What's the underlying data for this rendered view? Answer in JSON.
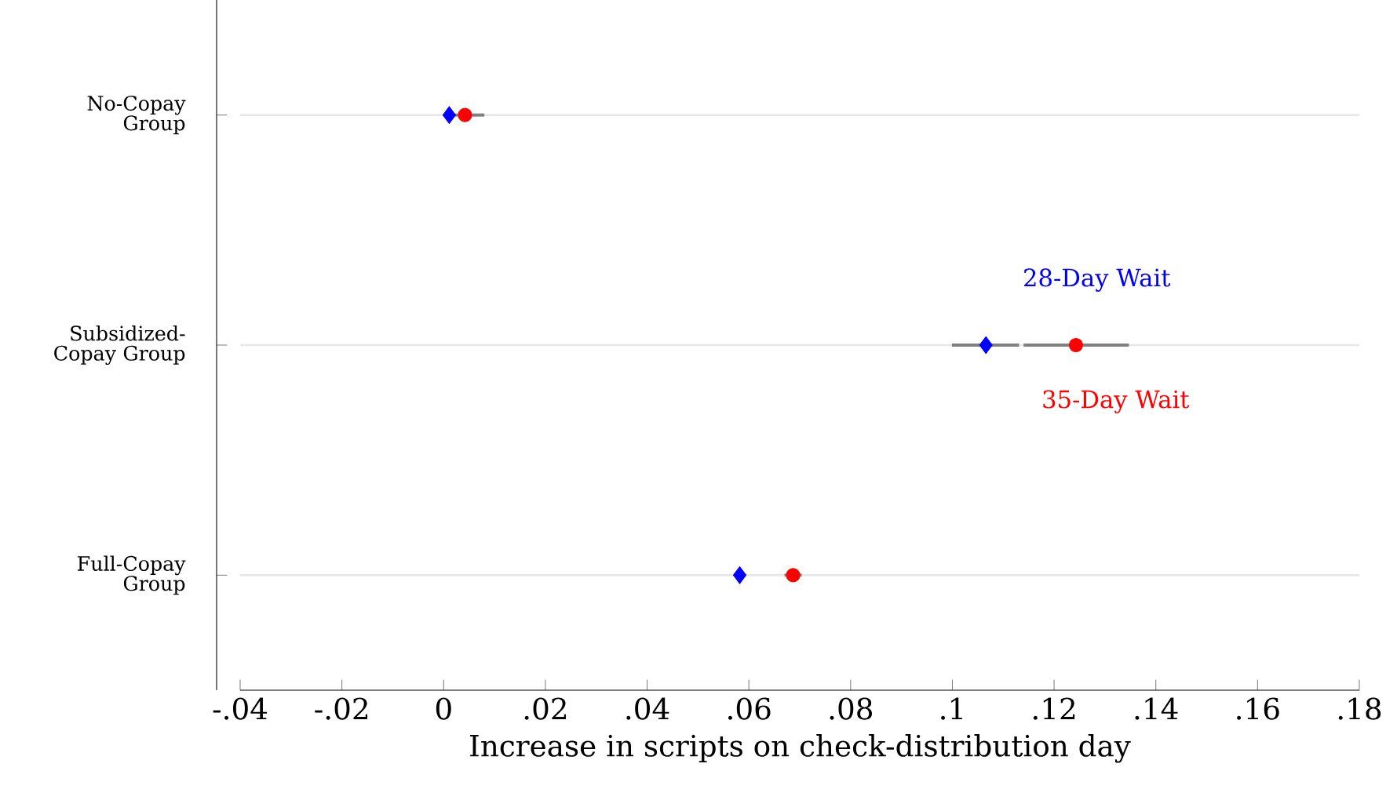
{
  "chart_data": {
    "type": "scatter",
    "orientation": "horizontal",
    "xlabel": "Increase in scripts on check-distribution day",
    "categories": [
      "No-Copay Group",
      "Subsidized-Copay Group",
      "Full-Copay Group"
    ],
    "xlim": [
      -0.04,
      0.18
    ],
    "xticks": [
      {
        "value": -0.04,
        "label": "-.04"
      },
      {
        "value": -0.02,
        "label": "-.02"
      },
      0,
      {
        "value": 0.02,
        "label": ".02"
      },
      {
        "value": 0.04,
        "label": ".04"
      },
      {
        "value": 0.06,
        "label": ".06"
      },
      {
        "value": 0.08,
        "label": ".08"
      },
      {
        "value": 0.1,
        "label": ".1"
      },
      {
        "value": 0.12,
        "label": ".12"
      },
      {
        "value": 0.14,
        "label": ".14"
      },
      {
        "value": 0.16,
        "label": ".16"
      },
      {
        "value": 0.18,
        "label": ".18"
      }
    ],
    "grid": "y",
    "series": [
      {
        "name": "28-Day Wait",
        "color": "#0000ff",
        "marker": "diamond",
        "values": [
          0.0011,
          0.1066,
          0.0582
        ],
        "errors": [
          null,
          [
            0.0999,
            0.1131
          ],
          null
        ]
      },
      {
        "name": "35-Day Wait",
        "color": "#ff0000",
        "marker": "circle",
        "values": [
          0.0042,
          0.1243,
          0.0687
        ],
        "errors": [
          [
            0.0005,
            0.008
          ],
          [
            0.114,
            0.1347
          ],
          [
            0.067,
            0.0704
          ]
        ]
      }
    ]
  }
}
